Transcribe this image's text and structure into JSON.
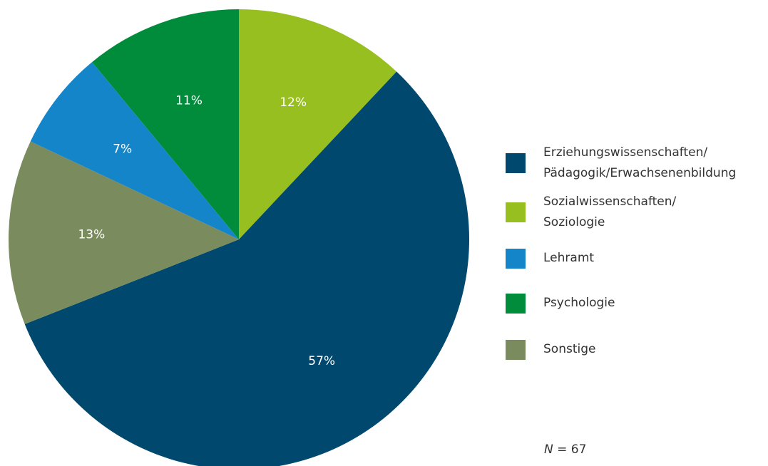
{
  "chart_data": {
    "type": "pie",
    "categories": [
      "Sozialwissenschaften/\nSoziologie",
      "Erziehungswissenschaften/\nPädagogik/Erwachsenenbildung",
      "Sonstige",
      "Lehramt",
      "Psychologie"
    ],
    "values": [
      12,
      57,
      13,
      7,
      11
    ],
    "value_labels": [
      "12%",
      "57%",
      "13%",
      "7%",
      "11%"
    ],
    "colors": [
      "#97bf1f",
      "#00486e",
      "#7a8c5e",
      "#1485c9",
      "#008c3a"
    ],
    "note": {
      "symbol": "N",
      "text": " = 67"
    }
  }
}
